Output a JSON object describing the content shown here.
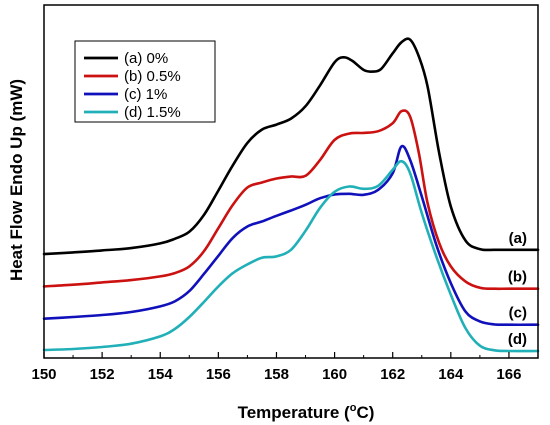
{
  "chart_data": {
    "type": "line",
    "xlabel": "Temperature (°C)",
    "xlabel_main": "Temperature (",
    "xlabel_deg": "o",
    "xlabel_unit": "C)",
    "ylabel": "Heat Flow Endo Up (mW)",
    "xlim": [
      150,
      167
    ],
    "ylim": [
      0,
      100
    ],
    "xticks": [
      150,
      152,
      154,
      156,
      158,
      160,
      162,
      164,
      166
    ],
    "y_tick_labels": false,
    "grid": false,
    "legend_position": "top-left",
    "series": [
      {
        "name": "(a) 0%",
        "end_label": "(a)",
        "color": "#000000",
        "points": [
          [
            150,
            29.7
          ],
          [
            151,
            30.2
          ],
          [
            152,
            30.8
          ],
          [
            153,
            31.5
          ],
          [
            154,
            32.9
          ],
          [
            154.5,
            34.3
          ],
          [
            155,
            36.4
          ],
          [
            155.5,
            41.4
          ],
          [
            156,
            48.8
          ],
          [
            156.5,
            56.4
          ],
          [
            157,
            63.1
          ],
          [
            157.5,
            67.1
          ],
          [
            158,
            68.6
          ],
          [
            158.5,
            70.4
          ],
          [
            159,
            74.1
          ],
          [
            159.5,
            80.4
          ],
          [
            160,
            87.3
          ],
          [
            160.3,
            88.8
          ],
          [
            160.6,
            87.8
          ],
          [
            161,
            85.0
          ],
          [
            161.3,
            84.5
          ],
          [
            161.6,
            85.3
          ],
          [
            162,
            90.0
          ],
          [
            162.3,
            93.3
          ],
          [
            162.6,
            94.1
          ],
          [
            162.9,
            89.0
          ],
          [
            163.2,
            80.0
          ],
          [
            163.6,
            60.0
          ],
          [
            164,
            44.0
          ],
          [
            164.5,
            33.8
          ],
          [
            165,
            31.2
          ],
          [
            165.5,
            31.0
          ],
          [
            166,
            31.0
          ],
          [
            167,
            31.0
          ]
        ]
      },
      {
        "name": "(b) 0.5%",
        "end_label": "(b)",
        "color": "#cc1111",
        "points": [
          [
            150,
            20.0
          ],
          [
            151,
            20.5
          ],
          [
            152,
            21.2
          ],
          [
            153,
            21.9
          ],
          [
            154,
            23.0
          ],
          [
            154.5,
            24.0
          ],
          [
            155,
            26.0
          ],
          [
            155.5,
            30.5
          ],
          [
            156,
            37.5
          ],
          [
            156.5,
            44.5
          ],
          [
            157,
            49.7
          ],
          [
            157.5,
            51.2
          ],
          [
            158,
            52.4
          ],
          [
            158.5,
            53.0
          ],
          [
            159,
            53.2
          ],
          [
            159.5,
            58.0
          ],
          [
            160,
            64.0
          ],
          [
            160.5,
            65.9
          ],
          [
            161,
            66.1
          ],
          [
            161.5,
            66.6
          ],
          [
            162,
            69.0
          ],
          [
            162.3,
            72.6
          ],
          [
            162.6,
            71.0
          ],
          [
            162.9,
            60.0
          ],
          [
            163.2,
            45.0
          ],
          [
            163.6,
            33.0
          ],
          [
            164,
            26.0
          ],
          [
            164.5,
            21.5
          ],
          [
            165,
            19.6
          ],
          [
            165.5,
            19.3
          ],
          [
            166,
            19.3
          ],
          [
            167,
            19.3
          ]
        ]
      },
      {
        "name": "(c) 1%",
        "end_label": "(c)",
        "color": "#1111bb",
        "points": [
          [
            150,
            10.3
          ],
          [
            151,
            10.8
          ],
          [
            152,
            11.4
          ],
          [
            153,
            12.3
          ],
          [
            154,
            14.0
          ],
          [
            154.5,
            15.5
          ],
          [
            155,
            18.6
          ],
          [
            155.5,
            23.7
          ],
          [
            156,
            29.2
          ],
          [
            156.5,
            34.6
          ],
          [
            157,
            38.0
          ],
          [
            157.5,
            39.5
          ],
          [
            158,
            41.2
          ],
          [
            158.5,
            42.8
          ],
          [
            159,
            44.5
          ],
          [
            159.5,
            46.5
          ],
          [
            160,
            47.6
          ],
          [
            160.5,
            47.8
          ],
          [
            161,
            47.5
          ],
          [
            161.5,
            49.0
          ],
          [
            162,
            54.0
          ],
          [
            162.3,
            62.0
          ],
          [
            162.6,
            58.0
          ],
          [
            163,
            47.0
          ],
          [
            163.5,
            32.5
          ],
          [
            164,
            21.0
          ],
          [
            164.5,
            12.5
          ],
          [
            165,
            9.5
          ],
          [
            165.5,
            8.6
          ],
          [
            166,
            8.5
          ],
          [
            167,
            8.5
          ]
        ]
      },
      {
        "name": "(d) 1.5%",
        "end_label": "(d)",
        "color": "#22b0b8",
        "points": [
          [
            150,
            0.9
          ],
          [
            151,
            1.2
          ],
          [
            152,
            1.8
          ],
          [
            153,
            2.8
          ],
          [
            154,
            5.0
          ],
          [
            154.5,
            7.2
          ],
          [
            155,
            10.8
          ],
          [
            155.5,
            15.3
          ],
          [
            156,
            20.0
          ],
          [
            156.5,
            24.0
          ],
          [
            157,
            26.6
          ],
          [
            157.5,
            28.6
          ],
          [
            158,
            29.0
          ],
          [
            158.5,
            31.0
          ],
          [
            159,
            36.7
          ],
          [
            159.5,
            43.6
          ],
          [
            160,
            48.4
          ],
          [
            160.5,
            50.0
          ],
          [
            161,
            49.3
          ],
          [
            161.5,
            50.2
          ],
          [
            162,
            55.0
          ],
          [
            162.3,
            57.6
          ],
          [
            162.6,
            54.0
          ],
          [
            163,
            42.0
          ],
          [
            163.5,
            29.0
          ],
          [
            164,
            17.5
          ],
          [
            164.5,
            7.5
          ],
          [
            165,
            2.2
          ],
          [
            165.5,
            0.8
          ],
          [
            166,
            0.6
          ],
          [
            167,
            0.6
          ]
        ]
      }
    ]
  }
}
